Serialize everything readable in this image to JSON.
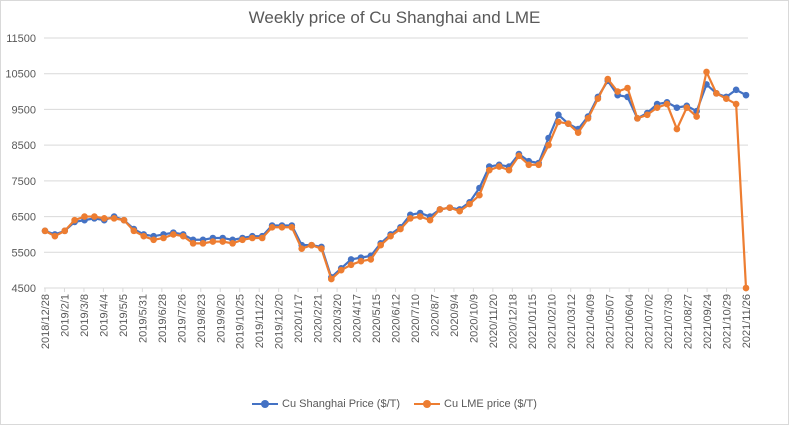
{
  "chart_data": {
    "type": "line",
    "title": "Weekly price of Cu Shanghai and LME",
    "xlabel": "",
    "ylabel": "",
    "ylim": [
      4500,
      11500
    ],
    "yticks": [
      4500,
      5500,
      6500,
      7500,
      8500,
      9500,
      10500,
      11500
    ],
    "grid": true,
    "legend_position": "bottom",
    "xtick_labels": [
      "2018/12/28",
      "2019/2/1",
      "2019/3/8",
      "2019/4/4",
      "2019/5/5",
      "2019/5/31",
      "2019/6/28",
      "2019/7/26",
      "2019/8/23",
      "2019/9/20",
      "2019/10/25",
      "2019/11/22",
      "2019/12/20",
      "2020/1/17",
      "2020/2/21",
      "2020/3/20",
      "2020/4/17",
      "2020/5/15",
      "2020/6/12",
      "2020/7/10",
      "2020/8/7",
      "2020/9/4",
      "2020/10/9",
      "2020/11/20",
      "2020/12/18",
      "2021/01/15",
      "2021/02/10",
      "2021/03/12",
      "2021/04/09",
      "2021/05/07",
      "2021/06/04",
      "2021/07/02",
      "2021/07/30",
      "2021/08/27",
      "2021/09/24",
      "2021/10/29",
      "2021/11/26"
    ],
    "series": [
      {
        "name": "Cu Shanghai Price ($/T)",
        "color": "#4472C4",
        "values": [
          6100,
          6000,
          6100,
          6350,
          6400,
          6450,
          6400,
          6500,
          6400,
          6150,
          6000,
          5950,
          6000,
          6050,
          6000,
          5850,
          5850,
          5900,
          5900,
          5850,
          5900,
          5950,
          5950,
          6250,
          6250,
          6250,
          5700,
          5700,
          5650,
          4800,
          5050,
          5300,
          5350,
          5400,
          5750,
          6000,
          6200,
          6550,
          6600,
          6500,
          6700,
          6750,
          6700,
          6900,
          7300,
          7900,
          7950,
          7900,
          8250,
          8050,
          8000,
          8700,
          9350,
          9100,
          8950,
          9300,
          9850,
          10300,
          9900,
          9850,
          9250,
          9400,
          9650,
          9700,
          9550,
          9600,
          9450,
          10200,
          9950,
          9850,
          10050,
          9900
        ]
      },
      {
        "name": "Cu LME price ($/T)",
        "color": "#ED7D31",
        "values": [
          6100,
          5950,
          6100,
          6400,
          6500,
          6500,
          6450,
          6450,
          6400,
          6100,
          5950,
          5850,
          5900,
          6000,
          5950,
          5750,
          5750,
          5800,
          5800,
          5750,
          5850,
          5900,
          5900,
          6200,
          6200,
          6200,
          5600,
          5700,
          5600,
          4750,
          5000,
          5150,
          5250,
          5300,
          5700,
          5950,
          6150,
          6450,
          6500,
          6400,
          6700,
          6750,
          6650,
          6850,
          7100,
          7800,
          7900,
          7800,
          8200,
          7950,
          7950,
          8500,
          9150,
          9100,
          8850,
          9250,
          9800,
          10350,
          10000,
          10100,
          9250,
          9350,
          9550,
          9650,
          8950,
          9550,
          9300,
          10550,
          9950,
          9800,
          9650,
          4500
        ]
      }
    ]
  }
}
